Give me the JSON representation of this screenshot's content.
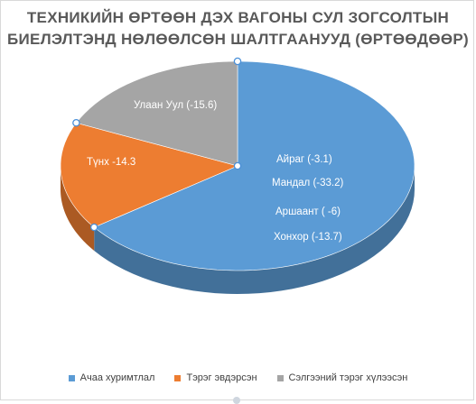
{
  "title_lines": [
    "ТЕХНИКИЙН ӨРТӨӨН ДЭХ ВАГОНЫ СУЛ ЗОГСОЛТЫН",
    "БИЕЛЭЛТЭНД НӨЛӨӨЛСӨН ШАЛТГААНУУД (ӨРТӨӨДӨӨР)"
  ],
  "chart_data": {
    "type": "pie",
    "style": "3d",
    "title": "ТЕХНИКИЙН ӨРТӨӨН ДЭХ ВАГОНЫ СУЛ ЗОГСОЛТЫН БИЕЛЭЛТЭНД НӨЛӨӨЛСӨН ШАЛТГААНУУД (ӨРТӨӨДӨӨР)",
    "categories": [
      "Ачаа хуримтлал",
      "Тэрэг эвдэрсэн",
      "Сэлгээний тэрэг хүлээсэн"
    ],
    "values": [
      55.6,
      14.3,
      15.6
    ],
    "colors": [
      "#5b9bd5",
      "#ed7d31",
      "#a5a5a5"
    ],
    "data_labels": [
      [
        "Айраг (-3.1)",
        "Мандал (-33.2)",
        "Аршаант ( -6)",
        "Хонхор  (-13.7)"
      ],
      [
        "Түнх -14.3"
      ],
      [
        "Улаан Уул  (-15.6)"
      ]
    ],
    "legend_position": "bottom"
  }
}
